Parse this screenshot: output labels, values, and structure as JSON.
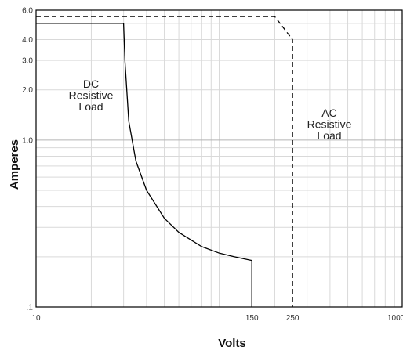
{
  "chart_data": {
    "type": "line",
    "title": "",
    "xlabel": "Volts",
    "ylabel": "Amperes",
    "x_scale": "log",
    "y_scale": "log",
    "xlim": [
      10,
      1000
    ],
    "ylim": [
      0.1,
      6.0
    ],
    "x_tick_labels": [
      {
        "value": 10,
        "label": "10"
      },
      {
        "value": 150,
        "label": "150"
      },
      {
        "value": 250,
        "label": "250"
      },
      {
        "value": 1000,
        "label": "1000"
      }
    ],
    "y_tick_labels": [
      {
        "value": 6.0,
        "label": "6.0"
      },
      {
        "value": 4.0,
        "label": "4.0"
      },
      {
        "value": 3.0,
        "label": "3.0"
      },
      {
        "value": 2.0,
        "label": "2.0"
      },
      {
        "value": 1.0,
        "label": "1.0"
      },
      {
        "value": 0.1,
        "label": ".1"
      }
    ],
    "grid": true,
    "series": [
      {
        "name": "DC Resistive Load",
        "style": "solid",
        "color": "#000000",
        "label_lines": [
          "DC",
          "Resistive",
          "Load"
        ],
        "x": [
          10,
          30,
          30.5,
          32,
          35,
          40,
          50,
          60,
          80,
          100,
          120,
          150,
          150
        ],
        "y": [
          5.0,
          5.0,
          3.0,
          1.3,
          0.75,
          0.5,
          0.34,
          0.28,
          0.23,
          0.21,
          0.2,
          0.19,
          0.1
        ]
      },
      {
        "name": "AC Resistive Load",
        "style": "dashed",
        "color": "#000000",
        "label_lines": [
          "AC",
          "Resistive",
          "Load"
        ],
        "x": [
          10,
          200,
          250,
          250
        ],
        "y": [
          5.5,
          5.5,
          4.0,
          0.1
        ]
      }
    ]
  },
  "colors": {
    "grid_major": "#b4b4b4",
    "grid_minor": "#d9d9d9",
    "axis": "#000000"
  }
}
